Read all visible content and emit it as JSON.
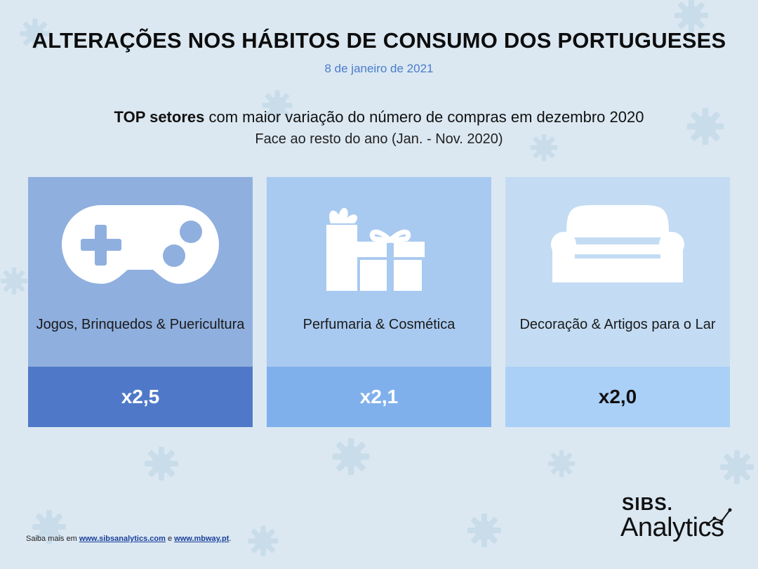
{
  "header": {
    "title": "ALTERAÇÕES NOS HÁBITOS DE CONSUMO DOS PORTUGUESES",
    "date": "8 de janeiro de 2021",
    "subtitle_bold": "TOP setores",
    "subtitle_rest": " com maior variação do número de compras em dezembro 2020",
    "subtitle2": "Face ao resto do ano (Jan. - Nov. 2020)"
  },
  "cards": [
    {
      "label": "Jogos, Brinquedos & Puericultura",
      "value": "x2,5",
      "icon": "gamepad-icon"
    },
    {
      "label": "Perfumaria & Cosmética",
      "value": "x2,1",
      "icon": "gift-icon"
    },
    {
      "label": "Decoração & Artigos para o Lar",
      "value": "x2,0",
      "icon": "sofa-icon"
    }
  ],
  "footer": {
    "prefix": "Saiba mais em ",
    "link1": "www.sibsanalytics.com",
    "middle": " e ",
    "link2": "www.mbway.pt",
    "suffix": "."
  },
  "logo": {
    "brand": "SIBS.",
    "product": "Analytics"
  },
  "colors": {
    "background": "#dbe8f2",
    "accent": "#4a7cc9",
    "card1_bottom": "#4f79c8",
    "card2_bottom": "#80b0ec",
    "card3_bottom": "#abd0f7"
  }
}
